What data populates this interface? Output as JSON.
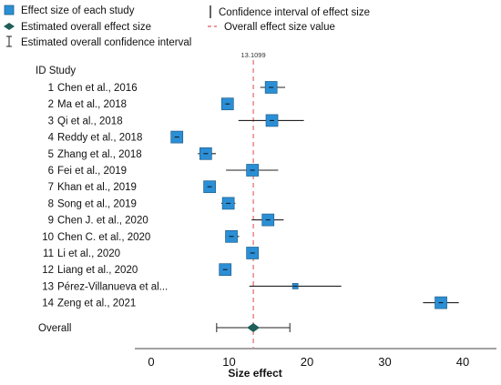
{
  "chart_data": {
    "type": "forest",
    "legend": {
      "study_effect": "Effect size of each study",
      "overall_effect": "Estimated overall effect size",
      "overall_ci": "Estimated overall confidence interval",
      "ci": "Confidence interval of effect size",
      "overall_value": "Overall effect size value"
    },
    "header": "ID Study",
    "overall_value": 13.1099,
    "overall_value_label": "13.1099",
    "xlabel": "Size effect",
    "xlim": [
      -2,
      44
    ],
    "xticks": [
      0,
      10,
      20,
      30,
      40
    ],
    "xtick_labels": [
      "0",
      "10",
      "20",
      "30",
      "40"
    ],
    "colors": {
      "marker": "#2b8fd6",
      "diamond": "#1f5e59",
      "ref_line": "#e05a5a"
    },
    "studies": [
      {
        "id": "1",
        "name": "Chen et al., 2016",
        "effect": 15.4,
        "ci": [
          14.0,
          17.2
        ]
      },
      {
        "id": "2",
        "name": "Ma et al., 2018",
        "effect": 9.8,
        "ci": [
          9.2,
          10.4
        ]
      },
      {
        "id": "3",
        "name": "Qi et al., 2018",
        "effect": 15.5,
        "ci": [
          11.2,
          19.6
        ]
      },
      {
        "id": "4",
        "name": "Reddy et al., 2018",
        "effect": 3.3,
        "ci": [
          2.6,
          4.0
        ]
      },
      {
        "id": "5",
        "name": "Zhang et al., 2018",
        "effect": 7.0,
        "ci": [
          6.0,
          8.3
        ]
      },
      {
        "id": "6",
        "name": "Fei et al., 2019",
        "effect": 13.0,
        "ci": [
          9.6,
          16.3
        ]
      },
      {
        "id": "7",
        "name": "Khan et al., 2019",
        "effect": 7.5,
        "ci": [
          6.8,
          8.3
        ]
      },
      {
        "id": "8",
        "name": "Song et al., 2019",
        "effect": 9.9,
        "ci": [
          9.0,
          10.8
        ]
      },
      {
        "id": "9",
        "name": "Chen J.  et al., 2020",
        "effect": 15.0,
        "ci": [
          12.9,
          17.0
        ]
      },
      {
        "id": "10",
        "name": "Chen C. et al., 2020",
        "effect": 10.3,
        "ci": [
          9.5,
          11.3
        ]
      },
      {
        "id": "11",
        "name": "Li et al., 2020",
        "effect": 13.0,
        "ci": [
          12.5,
          13.5
        ]
      },
      {
        "id": "12",
        "name": "Liang  et al., 2020",
        "effect": 9.5,
        "ci": [
          9.0,
          10.0
        ]
      },
      {
        "id": "13",
        "name": "Pérez-Villanueva et al...",
        "effect": 18.5,
        "ci": [
          12.6,
          24.4
        ]
      },
      {
        "id": "14",
        "name": "Zeng et al., 2021",
        "effect": 37.2,
        "ci": [
          34.9,
          39.5
        ]
      }
    ],
    "overall": {
      "label": "Overall",
      "effect": 13.1099,
      "ci": [
        8.4,
        17.8
      ]
    }
  }
}
